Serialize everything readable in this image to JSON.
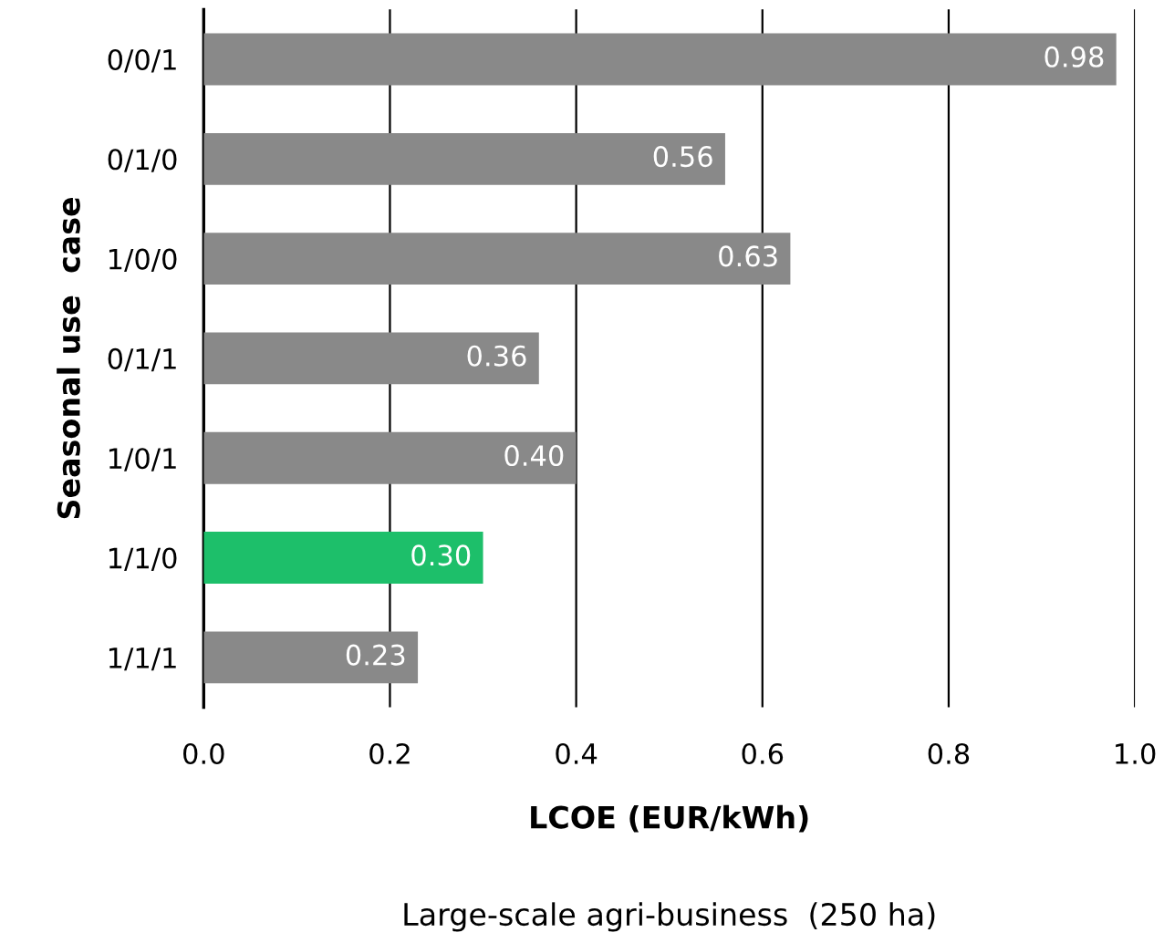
{
  "chart_data": {
    "type": "bar",
    "orientation": "horizontal",
    "xlabel": "LCOE (EUR/kWh)",
    "ylabel": "Seasonal use  case",
    "annotations": [
      "Large-scale agri-business  (250 ha)"
    ],
    "categories": [
      "0/0/1",
      "0/1/0",
      "1/0/0",
      "0/1/1",
      "1/0/1",
      "1/1/0",
      "1/1/1"
    ],
    "values": [
      0.98,
      0.56,
      0.63,
      0.36,
      0.4,
      0.3,
      0.23
    ],
    "value_labels": [
      "0.98",
      "0.56",
      "0.63",
      "0.36",
      "0.40",
      "0.30",
      "0.23"
    ],
    "colors": [
      "#898989",
      "#898989",
      "#898989",
      "#898989",
      "#898989",
      "#1dbf6a",
      "#898989"
    ],
    "xlim": [
      0,
      1
    ],
    "xticks": [
      {
        "value": 0,
        "label": "0.0"
      },
      {
        "value": 0.2,
        "label": "0.2"
      },
      {
        "value": 0.4,
        "label": "0.4"
      },
      {
        "value": 0.6,
        "label": "0.6"
      },
      {
        "value": 0.8,
        "label": "0.8"
      },
      {
        "value": 1,
        "label": "1.0"
      }
    ],
    "grid": "x"
  }
}
